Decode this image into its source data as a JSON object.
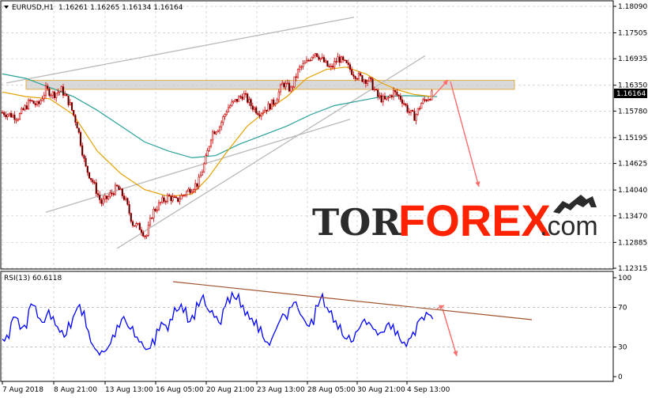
{
  "header": {
    "instrument": "EURUSD,H1",
    "ohlc": "1.16261 1.16265 1.16134 1.16164",
    "current_price": "1.16164"
  },
  "rsi_header": "RSI(13) 60.6118",
  "logo": {
    "part1": "TOR",
    "part2": "FOREX",
    "part3": ".com"
  },
  "colors": {
    "candle": "#cc0000",
    "ma_slow": "#2aa198",
    "ma_fast": "#e6a000",
    "channel": "#b9b9b9",
    "zone": "#cccccc",
    "forecast": "#ff6a6a",
    "rsi": "#0000ff",
    "rsi_trend": "#a0522d",
    "logo_dark": "#2b2b2b",
    "logo_red": "#ff2200"
  },
  "chart_data": [
    {
      "type": "line",
      "name": "price",
      "y_ticks": [
        "1.18090",
        "1.17505",
        "1.16935",
        "1.16350",
        "1.15780",
        "1.15195",
        "1.14625",
        "1.14040",
        "1.13470",
        "1.12885",
        "1.12315"
      ],
      "x_ticks": [
        "7 Aug 2018",
        "8 Aug 21:00",
        "13 Aug 13:00",
        "16 Aug 05:00",
        "20 Aug 21:00",
        "23 Aug 13:00",
        "28 Aug 05:00",
        "30 Aug 21:00",
        "4 Sep 13:00"
      ],
      "ylim": [
        1.12315,
        1.1809
      ],
      "price_path": [
        [
          0,
          1.1575
        ],
        [
          20,
          1.1565
        ],
        [
          35,
          1.16
        ],
        [
          45,
          1.159
        ],
        [
          55,
          1.1625
        ],
        [
          65,
          1.1615
        ],
        [
          75,
          1.1625
        ],
        [
          85,
          1.1595
        ],
        [
          95,
          1.1545
        ],
        [
          105,
          1.1455
        ],
        [
          115,
          1.142
        ],
        [
          125,
          1.1375
        ],
        [
          135,
          1.139
        ],
        [
          145,
          1.141
        ],
        [
          155,
          1.1385
        ],
        [
          165,
          1.133
        ],
        [
          175,
          1.132
        ],
        [
          182,
          1.13
        ],
        [
          190,
          1.1355
        ],
        [
          200,
          1.1375
        ],
        [
          210,
          1.139
        ],
        [
          220,
          1.138
        ],
        [
          230,
          1.1395
        ],
        [
          240,
          1.141
        ],
        [
          248,
          1.142
        ],
        [
          258,
          1.1475
        ],
        [
          265,
          1.153
        ],
        [
          275,
          1.1545
        ],
        [
          285,
          1.1585
        ],
        [
          295,
          1.16
        ],
        [
          305,
          1.1615
        ],
        [
          315,
          1.159
        ],
        [
          325,
          1.1575
        ],
        [
          335,
          1.1585
        ],
        [
          345,
          1.16
        ],
        [
          355,
          1.164
        ],
        [
          365,
          1.1625
        ],
        [
          375,
          1.167
        ],
        [
          385,
          1.1685
        ],
        [
          395,
          1.171
        ],
        [
          405,
          1.169
        ],
        [
          415,
          1.167
        ],
        [
          425,
          1.1695
        ],
        [
          435,
          1.168
        ],
        [
          445,
          1.166
        ],
        [
          455,
          1.165
        ],
        [
          465,
          1.1645
        ],
        [
          475,
          1.161
        ],
        [
          485,
          1.16
        ],
        [
          495,
          1.162
        ],
        [
          505,
          1.1605
        ],
        [
          515,
          1.1575
        ],
        [
          522,
          1.1565
        ],
        [
          530,
          1.1595
        ],
        [
          540,
          1.161
        ],
        [
          545,
          1.1616
        ]
      ],
      "ma_slow_path": [
        [
          0,
          1.166
        ],
        [
          30,
          1.165
        ],
        [
          60,
          1.163
        ],
        [
          90,
          1.161
        ],
        [
          120,
          1.158
        ],
        [
          150,
          1.1545
        ],
        [
          180,
          1.151
        ],
        [
          210,
          1.149
        ],
        [
          240,
          1.1475
        ],
        [
          270,
          1.148
        ],
        [
          300,
          1.1505
        ],
        [
          330,
          1.1525
        ],
        [
          360,
          1.1545
        ],
        [
          390,
          1.157
        ],
        [
          420,
          1.159
        ],
        [
          450,
          1.16
        ],
        [
          480,
          1.161
        ],
        [
          510,
          1.1612
        ],
        [
          550,
          1.161
        ]
      ],
      "ma_fast_path": [
        [
          0,
          1.162
        ],
        [
          30,
          1.161
        ],
        [
          60,
          1.1605
        ],
        [
          90,
          1.157
        ],
        [
          120,
          1.149
        ],
        [
          150,
          1.144
        ],
        [
          180,
          1.1405
        ],
        [
          210,
          1.139
        ],
        [
          240,
          1.1395
        ],
        [
          260,
          1.143
        ],
        [
          285,
          1.149
        ],
        [
          310,
          1.1545
        ],
        [
          335,
          1.158
        ],
        [
          360,
          1.161
        ],
        [
          385,
          1.165
        ],
        [
          410,
          1.167
        ],
        [
          435,
          1.1675
        ],
        [
          460,
          1.166
        ],
        [
          480,
          1.164
        ],
        [
          500,
          1.1625
        ],
        [
          520,
          1.1615
        ],
        [
          545,
          1.161
        ]
      ],
      "resistance_zone": [
        1.1626,
        1.1646
      ],
      "channel_upper": [
        [
          5,
          1.164
        ],
        [
          445,
          1.1785
        ]
      ],
      "channel_lower": [
        [
          145,
          1.1275
        ],
        [
          535,
          1.17
        ]
      ],
      "channel_mid": [
        [
          55,
          1.1355
        ],
        [
          440,
          1.156
        ]
      ]
    },
    {
      "type": "line",
      "name": "RSI(13)",
      "y_ticks": [
        "100",
        "70",
        "30",
        "0"
      ],
      "ylim": [
        0,
        100
      ],
      "values": [
        38,
        42,
        55,
        60,
        48,
        52,
        68,
        72,
        60,
        55,
        62,
        58,
        52,
        45,
        40,
        55,
        60,
        70,
        62,
        50,
        35,
        28,
        22,
        25,
        30,
        42,
        52,
        58,
        55,
        48,
        40,
        35,
        30,
        28,
        38,
        48,
        55,
        52,
        58,
        70,
        68,
        65,
        55,
        62,
        75,
        78,
        72,
        65,
        60,
        55,
        68,
        80,
        85,
        78,
        70,
        62,
        58,
        52,
        45,
        40,
        35,
        38,
        48,
        58,
        62,
        70,
        75,
        68,
        60,
        52,
        58,
        72,
        78,
        70,
        65,
        55,
        48,
        42,
        38,
        35,
        45,
        50,
        58,
        55,
        48,
        42,
        45,
        52,
        48,
        42,
        38,
        35,
        38,
        45,
        55,
        60,
        65,
        62
      ]
    }
  ]
}
